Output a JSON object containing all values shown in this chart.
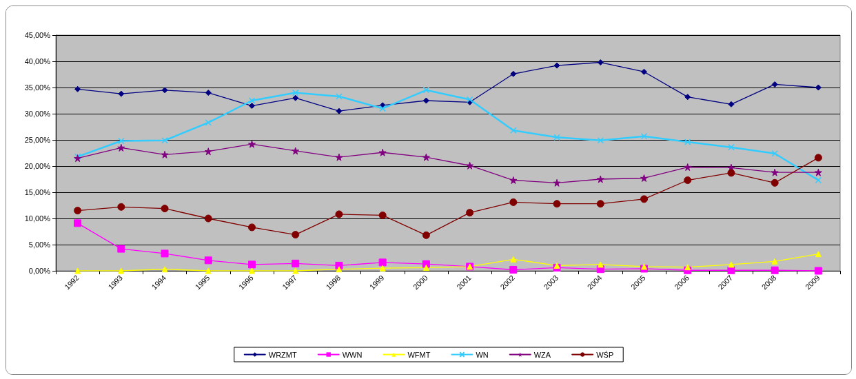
{
  "chart_data": {
    "type": "line",
    "categories": [
      "1992",
      "1993",
      "1994",
      "1995",
      "1996",
      "1997",
      "1998",
      "1999",
      "2000",
      "2001",
      "2002",
      "2003",
      "2004",
      "2005",
      "2006",
      "2007",
      "2008",
      "2009"
    ],
    "ylim": [
      0,
      45
    ],
    "yticks": [
      {
        "value": 0,
        "label": "0,00%"
      },
      {
        "value": 5,
        "label": "5,00%"
      },
      {
        "value": 10,
        "label": "10,00%"
      },
      {
        "value": 15,
        "label": "15,00%"
      },
      {
        "value": 20,
        "label": "20,00%"
      },
      {
        "value": 25,
        "label": "25,00%"
      },
      {
        "value": 30,
        "label": "30,00%"
      },
      {
        "value": 35,
        "label": "35,00%"
      },
      {
        "value": 40,
        "label": "40,00%"
      },
      {
        "value": 45,
        "label": "45,00%"
      }
    ],
    "grid": "y",
    "legend": "bottom",
    "line_style": "solid",
    "series": [
      {
        "name": "WRZMT",
        "color": "#000080",
        "marker": "diamond",
        "values": [
          34.7,
          33.8,
          34.5,
          34.0,
          31.5,
          33.0,
          30.5,
          31.6,
          32.5,
          32.2,
          37.6,
          39.2,
          39.8,
          38.0,
          33.2,
          31.8,
          35.6,
          35.0
        ]
      },
      {
        "name": "WWN",
        "color": "#ff00ff",
        "marker": "square",
        "values": [
          9.1,
          4.2,
          3.3,
          2.0,
          1.2,
          1.4,
          1.0,
          1.6,
          1.3,
          0.8,
          0.2,
          0.6,
          0.3,
          0.4,
          0.1,
          0.1,
          0.1,
          0.0
        ]
      },
      {
        "name": "WFMT",
        "color": "#ffff00",
        "marker": "triangle",
        "values": [
          0,
          0,
          0.3,
          0,
          0,
          0,
          0.3,
          0.5,
          0.6,
          0.8,
          2.2,
          1.0,
          1.2,
          0.8,
          0.7,
          1.2,
          1.8,
          3.2
        ]
      },
      {
        "name": "WN",
        "color": "#33ccff",
        "marker": "cross",
        "values": [
          21.8,
          24.8,
          24.9,
          28.3,
          32.5,
          34.0,
          33.3,
          31.0,
          34.5,
          32.7,
          26.8,
          25.5,
          24.9,
          25.7,
          24.6,
          23.6,
          22.4,
          17.3
        ]
      },
      {
        "name": "WZA",
        "color": "#800080",
        "marker": "star",
        "values": [
          21.5,
          23.5,
          22.2,
          22.8,
          24.2,
          22.9,
          21.7,
          22.6,
          21.7,
          20.1,
          17.3,
          16.8,
          17.5,
          17.7,
          19.8,
          19.7,
          18.8,
          18.8
        ]
      },
      {
        "name": "WŚP",
        "color": "#800000",
        "marker": "circle",
        "values": [
          11.5,
          12.2,
          11.9,
          10.0,
          8.3,
          6.9,
          10.8,
          10.6,
          6.8,
          11.1,
          13.1,
          12.8,
          12.8,
          13.7,
          17.3,
          18.7,
          16.8,
          21.6
        ]
      }
    ]
  }
}
